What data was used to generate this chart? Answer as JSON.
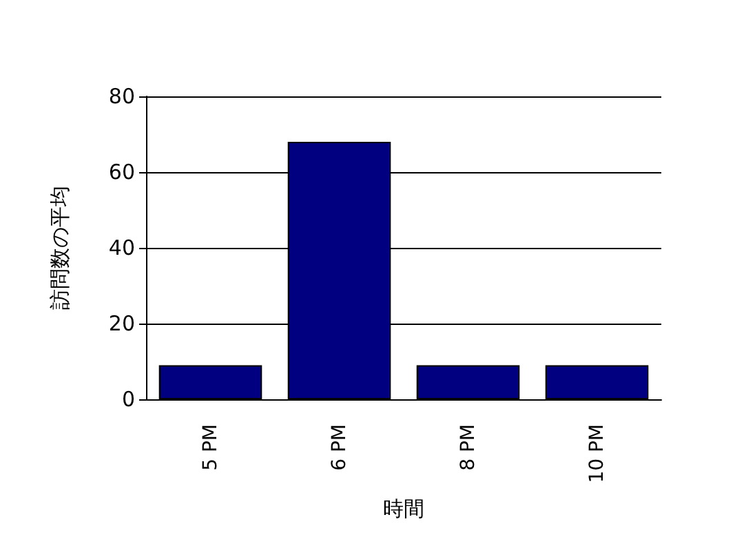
{
  "chart_data": {
    "type": "bar",
    "xlabel": "時間",
    "ylabel": "訪問数の平均",
    "categories": [
      "5 PM",
      "6 PM",
      "8 PM",
      "10 PM"
    ],
    "values": [
      9,
      68,
      9,
      9
    ],
    "color": "#000080",
    "ylim": [
      0,
      80
    ],
    "yticks": [
      0,
      20,
      40,
      60,
      80
    ],
    "grid": "y"
  }
}
